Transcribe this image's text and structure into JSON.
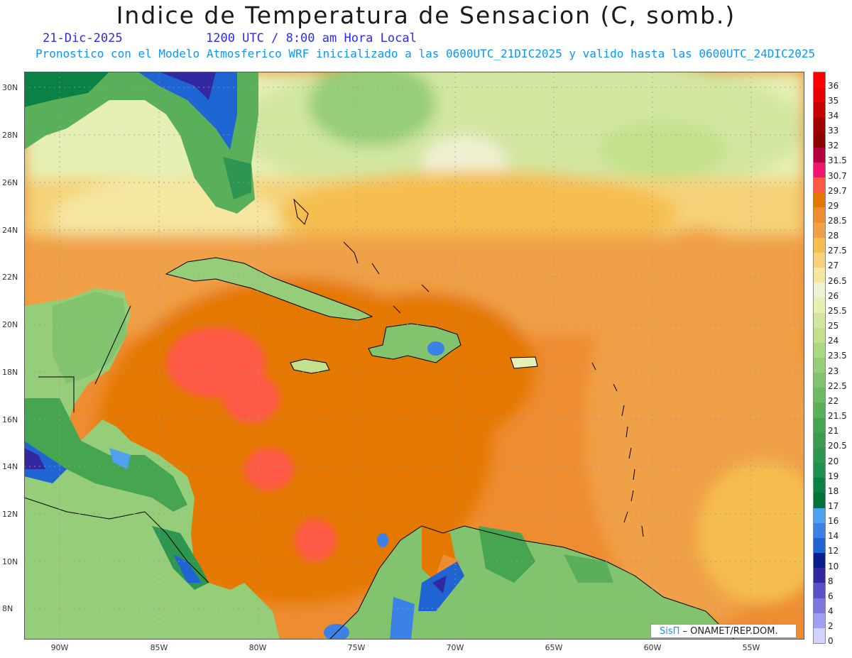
{
  "header": {
    "title": "Indice de Temperatura de Sensacion (C, somb.)",
    "date": "21-Dic-2025",
    "time": "1200 UTC / 8:00 am Hora Local",
    "subtitle": "Pronostico con el Modelo Atmosferico WRF inicializado a las 0600UTC_21DIC2025 y valido hasta las  0600UTC_24DIC2025"
  },
  "axes": {
    "lat_labels": [
      "30N",
      "28N",
      "26N",
      "24N",
      "22N",
      "20N",
      "18N",
      "16N",
      "14N",
      "12N",
      "10N",
      "8N"
    ],
    "lon_labels": [
      "90W",
      "85W",
      "80W",
      "75W",
      "70W",
      "65W",
      "60W",
      "55W"
    ]
  },
  "legend": [
    {
      "label": "36",
      "color": "#ff0000"
    },
    {
      "label": "35",
      "color": "#e60000"
    },
    {
      "label": "34",
      "color": "#c80000"
    },
    {
      "label": "33",
      "color": "#a00000"
    },
    {
      "label": "32",
      "color": "#8c0000"
    },
    {
      "label": "31.5",
      "color": "#b4003c"
    },
    {
      "label": "30.7",
      "color": "#f0146e"
    },
    {
      "label": "29.7",
      "color": "#ff5a46"
    },
    {
      "label": "29",
      "color": "#e47800"
    },
    {
      "label": "28.5",
      "color": "#ee8c32"
    },
    {
      "label": "28",
      "color": "#f0a046"
    },
    {
      "label": "27.5",
      "color": "#f5be50"
    },
    {
      "label": "27",
      "color": "#f5d278"
    },
    {
      "label": "26.5",
      "color": "#f5e6a0"
    },
    {
      "label": "26",
      "color": "#f0f0d2"
    },
    {
      "label": "25.5",
      "color": "#e6f0b4"
    },
    {
      "label": "25",
      "color": "#d2e6a0"
    },
    {
      "label": "24",
      "color": "#c3e18c"
    },
    {
      "label": "23.5",
      "color": "#aad782"
    },
    {
      "label": "23",
      "color": "#96cd78"
    },
    {
      "label": "22.5",
      "color": "#82c36e"
    },
    {
      "label": "22",
      "color": "#6eb964"
    },
    {
      "label": "21.5",
      "color": "#5aaf5a"
    },
    {
      "label": "21",
      "color": "#46a550"
    },
    {
      "label": "20.5",
      "color": "#3c9b50"
    },
    {
      "label": "20",
      "color": "#2d9650"
    },
    {
      "label": "19",
      "color": "#1e9150"
    },
    {
      "label": "18",
      "color": "#0a8246"
    },
    {
      "label": "17",
      "color": "#00733c"
    },
    {
      "label": "16",
      "color": "#50a0f0"
    },
    {
      "label": "14",
      "color": "#3c82e6"
    },
    {
      "label": "12",
      "color": "#1e64d2"
    },
    {
      "label": "10",
      "color": "#0a1e8c"
    },
    {
      "label": "8",
      "color": "#3228a0"
    },
    {
      "label": "6",
      "color": "#5a50c8"
    },
    {
      "label": "4",
      "color": "#7d78dc"
    },
    {
      "label": "2",
      "color": "#a09ff0"
    },
    {
      "label": "0",
      "color": "#d2d2ff"
    }
  ],
  "credit": {
    "sis": "SisΠ",
    "text": " – ONAMET/REP.DOM."
  }
}
